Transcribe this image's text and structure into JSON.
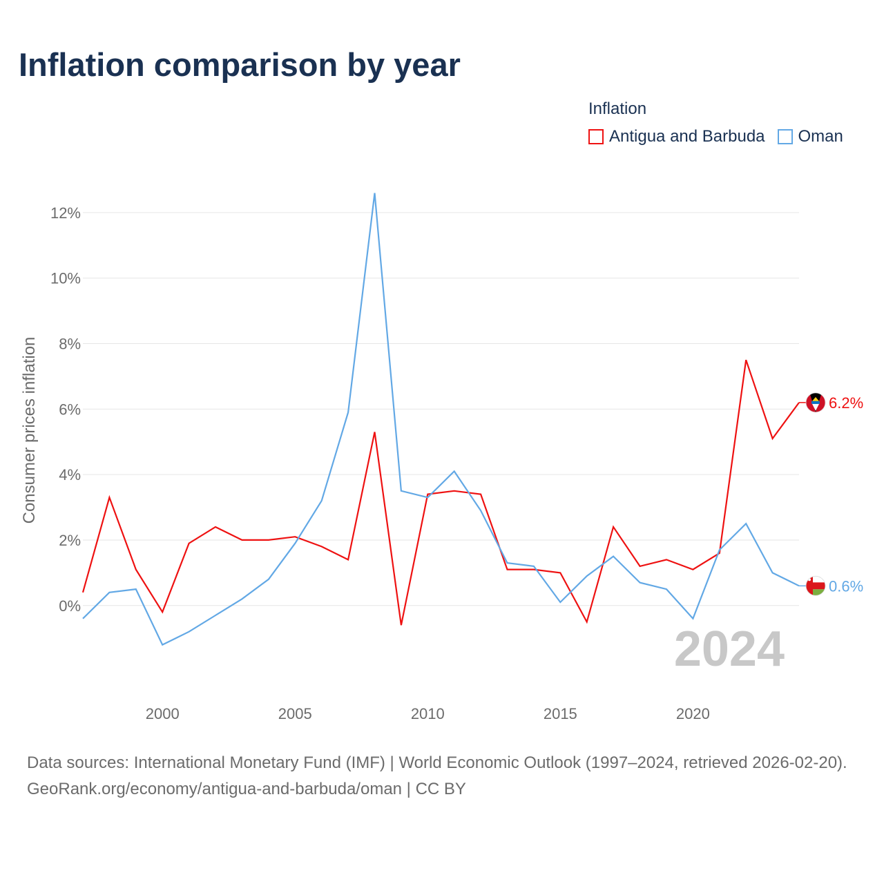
{
  "title": "Inflation comparison by year",
  "legend": {
    "title": "Inflation",
    "items": [
      {
        "label": "Antigua and Barbuda",
        "color": "#ee1111"
      },
      {
        "label": "Oman",
        "color": "#62a8e5"
      }
    ]
  },
  "chart_data": {
    "type": "line",
    "title": "Inflation comparison by year",
    "xlabel": "",
    "ylabel": "Consumer prices inflation",
    "x": [
      1997,
      1998,
      1999,
      2000,
      2001,
      2002,
      2003,
      2004,
      2005,
      2006,
      2007,
      2008,
      2009,
      2010,
      2011,
      2012,
      2013,
      2014,
      2015,
      2016,
      2017,
      2018,
      2019,
      2020,
      2021,
      2022,
      2023,
      2024
    ],
    "xlim": [
      1997,
      2024
    ],
    "ylim": [
      -2.6,
      12.8
    ],
    "x_ticks": [
      2000,
      2005,
      2010,
      2015,
      2020
    ],
    "x_tick_labels": [
      "2000",
      "2005",
      "2010",
      "2015",
      "2020"
    ],
    "y_ticks": [
      0,
      2,
      4,
      6,
      8,
      10,
      12
    ],
    "y_tick_labels": [
      "0%",
      "2%",
      "4%",
      "6%",
      "8%",
      "10%",
      "12%"
    ],
    "grid": true,
    "series": [
      {
        "name": "Antigua and Barbuda",
        "color": "#ee1111",
        "values": [
          0.4,
          3.3,
          1.1,
          -0.2,
          1.9,
          2.4,
          2.0,
          2.0,
          2.1,
          1.8,
          1.4,
          5.3,
          -0.6,
          3.4,
          3.5,
          3.4,
          1.1,
          1.1,
          1.0,
          -0.5,
          2.4,
          1.2,
          1.4,
          1.1,
          1.6,
          7.5,
          5.1,
          6.2
        ],
        "end_label": "6.2%",
        "flag": "antigua-flag-icon"
      },
      {
        "name": "Oman",
        "color": "#62a8e5",
        "values": [
          -0.4,
          0.4,
          0.5,
          -1.2,
          -0.8,
          -0.3,
          0.2,
          0.8,
          1.9,
          3.2,
          5.9,
          12.6,
          3.5,
          3.3,
          4.1,
          2.9,
          1.3,
          1.2,
          0.1,
          0.9,
          1.5,
          0.7,
          0.5,
          -0.4,
          1.7,
          2.5,
          1.0,
          0.6
        ],
        "end_label": "0.6%",
        "flag": "oman-flag-icon"
      }
    ],
    "year_watermark": "2024"
  },
  "sources": {
    "line1": "Data sources: International Monetary Fund (IMF) | World Economic Outlook (1997–2024, retrieved 2026-02-20).",
    "line2": "GeoRank.org/economy/antigua-and-barbuda/oman | CC BY"
  }
}
